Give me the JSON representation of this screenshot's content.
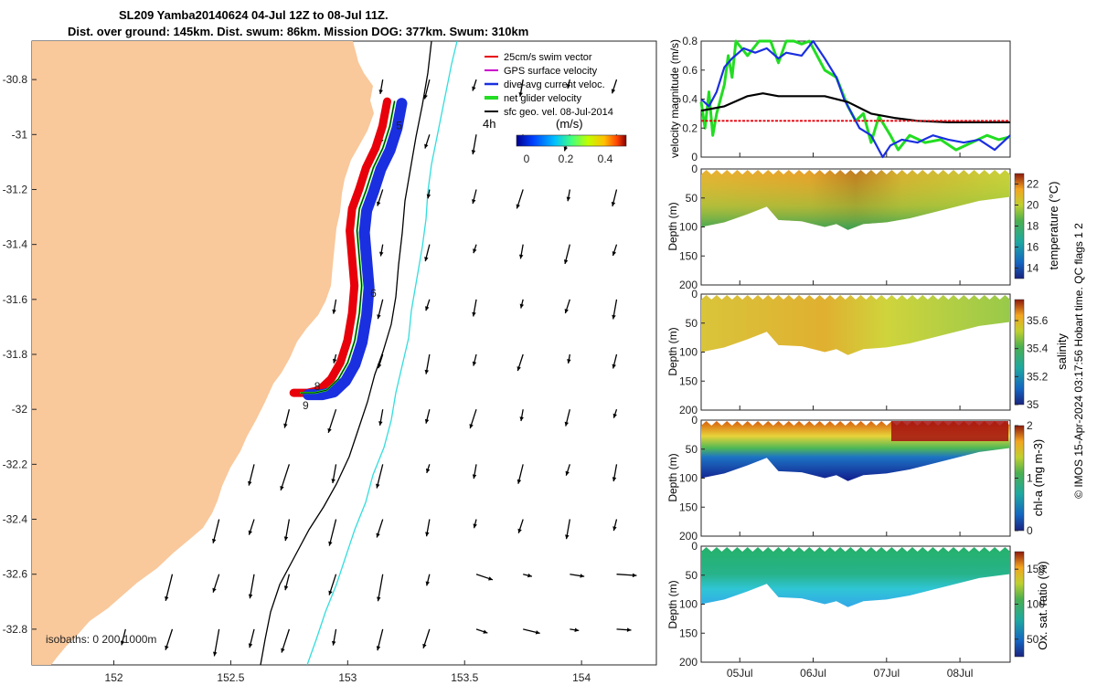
{
  "title": {
    "line1": "SL209 Yamba20140624 04-Jul 12Z to 08-Jul 11Z.",
    "line2": "Dist. over ground: 145km. Dist. swum: 86km. Mission DOG: 377km. Swum: 310km"
  },
  "footer_credit": "© IMOS 15-Apr-2024 03:17:56 Hobart time. QC flags 1  2",
  "colors": {
    "land": "#f9c89b",
    "swim_vector": "#e8000a",
    "gps_velocity": "#cc00cc",
    "dive_avg": "#1a2fe0",
    "net_glider": "#22dd22",
    "sfc_geo": "#000000",
    "isobath_200": "#000000",
    "isobath_1000": "#33dddd"
  },
  "chart_data": [
    {
      "type": "map",
      "xlim": [
        151.65,
        154.32
      ],
      "ylim": [
        -32.93,
        -30.66
      ],
      "x_ticks": [
        "152",
        "152.5",
        "153",
        "153.5",
        "154"
      ],
      "y_ticks": [
        "-30.8",
        "-31",
        "-31.2",
        "-31.4",
        "-31.6",
        "-31.8",
        "-32",
        "-32.2",
        "-32.4",
        "-32.6",
        "-32.8"
      ],
      "legend": {
        "placement": "top-right",
        "items": [
          "25cm/s swim vector",
          "GPS surface velocity",
          "dive-avg current veloc.",
          "net glider velocity",
          "sfc geo. vel. 08-Jul-2014"
        ]
      },
      "colorbar": {
        "title": "(m/s)",
        "ticks": [
          "0",
          "0.2",
          "0.4"
        ],
        "range": [
          -0.05,
          0.5
        ],
        "scale_label": "4h"
      },
      "isobaths_label": "isobaths: 0   200  1000m",
      "day_labels": [
        {
          "text": "5",
          "lon": 153.22,
          "lat": -30.98
        },
        {
          "text": "6",
          "lon": 153.11,
          "lat": -31.59
        },
        {
          "text": "8",
          "lon": 152.87,
          "lat": -31.93
        },
        {
          "text": "9",
          "lon": 152.82,
          "lat": -32.0
        }
      ],
      "track": [
        [
          153.2,
          -30.88
        ],
        [
          153.18,
          -30.97
        ],
        [
          153.15,
          -31.05
        ],
        [
          153.11,
          -31.12
        ],
        [
          153.08,
          -31.2
        ],
        [
          153.05,
          -31.27
        ],
        [
          153.04,
          -31.35
        ],
        [
          153.05,
          -31.45
        ],
        [
          153.06,
          -31.55
        ],
        [
          153.05,
          -31.65
        ],
        [
          153.03,
          -31.75
        ],
        [
          153.0,
          -31.83
        ],
        [
          152.96,
          -31.89
        ],
        [
          152.91,
          -31.93
        ],
        [
          152.86,
          -31.94
        ],
        [
          152.8,
          -31.94
        ]
      ],
      "vector_grid": {
        "lons": [
          152.05,
          152.25,
          152.45,
          152.6,
          152.75,
          152.95,
          153.15,
          153.35,
          153.55,
          153.75,
          153.95,
          154.15
        ],
        "lats": [
          -30.8,
          -31.0,
          -31.2,
          -31.4,
          -31.6,
          -31.8,
          -32.0,
          -32.2,
          -32.4,
          -32.6,
          -32.8
        ]
      }
    },
    {
      "type": "line",
      "ylabel": "velocity magnitude (m/s)",
      "ylim": [
        0,
        0.8
      ],
      "y_ticks": [
        "0",
        "0.2",
        "0.4",
        "0.6",
        "0.8"
      ],
      "xlim": [
        0,
        4
      ],
      "series": [
        {
          "color": "#22dd22",
          "values": [
            [
              0,
              0.38
            ],
            [
              0.05,
              0.2
            ],
            [
              0.1,
              0.45
            ],
            [
              0.15,
              0.15
            ],
            [
              0.2,
              0.3
            ],
            [
              0.3,
              0.5
            ],
            [
              0.35,
              0.7
            ],
            [
              0.4,
              0.55
            ],
            [
              0.45,
              0.8
            ],
            [
              0.6,
              0.7
            ],
            [
              0.75,
              0.8
            ],
            [
              0.9,
              0.8
            ],
            [
              1.0,
              0.65
            ],
            [
              1.1,
              0.8
            ],
            [
              1.2,
              0.8
            ],
            [
              1.3,
              0.78
            ],
            [
              1.4,
              0.8
            ],
            [
              1.6,
              0.6
            ],
            [
              1.75,
              0.55
            ],
            [
              1.9,
              0.35
            ],
            [
              2.0,
              0.25
            ],
            [
              2.1,
              0.3
            ],
            [
              2.2,
              0.1
            ],
            [
              2.3,
              0.28
            ],
            [
              2.45,
              0.15
            ],
            [
              2.55,
              0.05
            ],
            [
              2.7,
              0.15
            ],
            [
              2.9,
              0.1
            ],
            [
              3.1,
              0.12
            ],
            [
              3.3,
              0.05
            ],
            [
              3.5,
              0.1
            ],
            [
              3.7,
              0.15
            ],
            [
              3.85,
              0.12
            ],
            [
              4.0,
              0.14
            ]
          ]
        },
        {
          "color": "#1a2fe0",
          "values": [
            [
              0,
              0.4
            ],
            [
              0.1,
              0.35
            ],
            [
              0.2,
              0.45
            ],
            [
              0.3,
              0.62
            ],
            [
              0.4,
              0.68
            ],
            [
              0.55,
              0.75
            ],
            [
              0.7,
              0.72
            ],
            [
              0.85,
              0.75
            ],
            [
              1.0,
              0.68
            ],
            [
              1.1,
              0.72
            ],
            [
              1.3,
              0.7
            ],
            [
              1.45,
              0.8
            ],
            [
              1.6,
              0.68
            ],
            [
              1.75,
              0.55
            ],
            [
              1.85,
              0.4
            ],
            [
              1.95,
              0.3
            ],
            [
              2.05,
              0.2
            ],
            [
              2.2,
              0.15
            ],
            [
              2.35,
              0.0
            ],
            [
              2.45,
              0.08
            ],
            [
              2.6,
              0.12
            ],
            [
              2.8,
              0.1
            ],
            [
              3.0,
              0.15
            ],
            [
              3.2,
              0.12
            ],
            [
              3.4,
              0.1
            ],
            [
              3.6,
              0.12
            ],
            [
              3.8,
              0.05
            ],
            [
              4.0,
              0.15
            ]
          ]
        },
        {
          "color": "#000000",
          "values": [
            [
              0,
              0.32
            ],
            [
              0.3,
              0.35
            ],
            [
              0.6,
              0.42
            ],
            [
              0.8,
              0.44
            ],
            [
              1.0,
              0.42
            ],
            [
              1.3,
              0.42
            ],
            [
              1.6,
              0.42
            ],
            [
              1.9,
              0.38
            ],
            [
              2.2,
              0.3
            ],
            [
              2.5,
              0.27
            ],
            [
              2.8,
              0.25
            ],
            [
              3.2,
              0.24
            ],
            [
              3.6,
              0.24
            ],
            [
              4.0,
              0.24
            ]
          ]
        },
        {
          "color": "#e8000a",
          "values": [
            [
              0,
              0.25
            ],
            [
              4.0,
              0.25
            ]
          ]
        }
      ]
    },
    {
      "type": "heatmap",
      "ylabel": "Depth (m)",
      "ylim": [
        200,
        0
      ],
      "y_ticks": [
        "0",
        "50",
        "100",
        "150",
        "200"
      ],
      "colorbar_label": "temperature (°C)",
      "colorbar_ticks": [
        "14",
        "16",
        "18",
        "20",
        "22"
      ],
      "crange": [
        13,
        23
      ],
      "bottom_depth": [
        [
          0,
          100
        ],
        [
          0.3,
          92
        ],
        [
          0.6,
          78
        ],
        [
          0.85,
          65
        ],
        [
          1.0,
          88
        ],
        [
          1.3,
          90
        ],
        [
          1.6,
          100
        ],
        [
          1.75,
          95
        ],
        [
          1.9,
          105
        ],
        [
          2.1,
          95
        ],
        [
          2.4,
          92
        ],
        [
          2.7,
          85
        ],
        [
          3.0,
          75
        ],
        [
          3.3,
          65
        ],
        [
          3.6,
          55
        ],
        [
          4.0,
          48
        ]
      ]
    },
    {
      "type": "heatmap",
      "ylabel": "Depth (m)",
      "ylim": [
        200,
        0
      ],
      "y_ticks": [
        "0",
        "50",
        "100",
        "150",
        "200"
      ],
      "colorbar_label": "salinity",
      "colorbar_ticks": [
        "35",
        "35.2",
        "35.4",
        "35.6"
      ],
      "crange": [
        35,
        35.75
      ],
      "bottom_depth": [
        [
          0,
          100
        ],
        [
          0.3,
          92
        ],
        [
          0.6,
          78
        ],
        [
          0.85,
          65
        ],
        [
          1.0,
          88
        ],
        [
          1.3,
          90
        ],
        [
          1.6,
          100
        ],
        [
          1.75,
          95
        ],
        [
          1.9,
          105
        ],
        [
          2.1,
          95
        ],
        [
          2.4,
          92
        ],
        [
          2.7,
          85
        ],
        [
          3.0,
          75
        ],
        [
          3.3,
          65
        ],
        [
          3.6,
          55
        ],
        [
          4.0,
          48
        ]
      ]
    },
    {
      "type": "heatmap",
      "ylabel": "Depth (m)",
      "ylim": [
        200,
        0
      ],
      "y_ticks": [
        "0",
        "50",
        "100",
        "150",
        "200"
      ],
      "colorbar_label": "chl-a (mg m-3)",
      "colorbar_ticks": [
        "0",
        "1",
        "2"
      ],
      "crange": [
        0,
        2
      ],
      "bottom_depth": [
        [
          0,
          100
        ],
        [
          0.3,
          92
        ],
        [
          0.6,
          78
        ],
        [
          0.85,
          65
        ],
        [
          1.0,
          88
        ],
        [
          1.3,
          90
        ],
        [
          1.6,
          100
        ],
        [
          1.75,
          95
        ],
        [
          1.9,
          105
        ],
        [
          2.1,
          95
        ],
        [
          2.4,
          92
        ],
        [
          2.7,
          85
        ],
        [
          3.0,
          75
        ],
        [
          3.3,
          65
        ],
        [
          3.6,
          55
        ],
        [
          4.0,
          48
        ]
      ]
    },
    {
      "type": "heatmap",
      "ylabel": "Depth (m)",
      "ylim": [
        200,
        0
      ],
      "y_ticks": [
        "0",
        "50",
        "100",
        "150",
        "200"
      ],
      "colorbar_label": "Ox. sat. ratio (%)",
      "colorbar_ticks": [
        "50",
        "100",
        "150"
      ],
      "crange": [
        25,
        175
      ],
      "bottom_depth": [
        [
          0,
          100
        ],
        [
          0.3,
          92
        ],
        [
          0.6,
          78
        ],
        [
          0.85,
          65
        ],
        [
          1.0,
          88
        ],
        [
          1.3,
          90
        ],
        [
          1.6,
          100
        ],
        [
          1.75,
          95
        ],
        [
          1.9,
          105
        ],
        [
          2.1,
          95
        ],
        [
          2.4,
          92
        ],
        [
          2.7,
          85
        ],
        [
          3.0,
          75
        ],
        [
          3.3,
          65
        ],
        [
          3.6,
          55
        ],
        [
          4.0,
          48
        ]
      ],
      "x_ticks": [
        "05Jul",
        "06Jul",
        "07Jul",
        "08Jul"
      ]
    }
  ]
}
